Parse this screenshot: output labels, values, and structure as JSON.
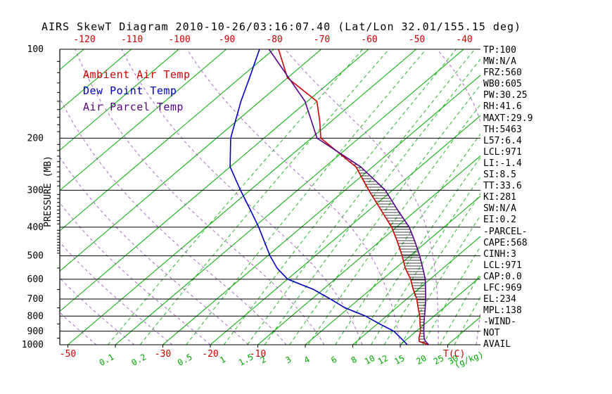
{
  "title": "AIRS SkewT Diagram 2010-10-26/03:16:07.40 (Lat/Lon 32.01/155.15 deg)",
  "colors": {
    "temp": "#cc0000",
    "dewpoint": "#0000bb",
    "parcel": "#550088",
    "isotherm": "#00aa00",
    "mixing": "#00aa00",
    "moist_adiabat": "#9944bb",
    "axis": "#000000",
    "background": "#ffffff"
  },
  "legend": {
    "items": [
      {
        "label": "Ambient Air Temp",
        "color": "#cc0000"
      },
      {
        "label": "Dew Point Temp",
        "color": "#0000bb"
      },
      {
        "label": "Air Parcel Temp",
        "color": "#550088"
      }
    ]
  },
  "left_axis": {
    "title": "PRESSURE (MB)",
    "ticks": [
      100,
      200,
      300,
      400,
      500,
      600,
      700,
      800,
      900,
      1000
    ]
  },
  "top_axis": {
    "labels": [
      -120,
      -110,
      -100,
      -90,
      -80,
      -70,
      -60,
      -50,
      -40
    ]
  },
  "bottom_axis": {
    "temp_labels": [
      -50,
      -30,
      -20,
      -10
    ],
    "temp_unit": "T(C)",
    "mixing_labels": [
      0.1,
      0.2,
      0.5,
      1,
      1.5,
      2,
      3,
      4,
      6,
      8,
      10,
      12,
      15,
      20,
      25,
      30
    ],
    "mixing_unit": "(g/kg)"
  },
  "metrics_panel": {
    "lines": [
      "TP:100",
      "MW:N/A",
      "FRZ:560",
      "WB0:605",
      "PW:30.25",
      "RH:41.6",
      "MAXT:29.9",
      "TH:5463",
      "L57:6.4",
      "LCL:971",
      "LI:-1.4",
      "SI:8.5",
      "TT:33.6",
      "KI:281",
      "SW:N/A",
      "EI:0.2",
      "-PARCEL-",
      "CAPE:568",
      "CINH:3",
      "LCL:971",
      "CAP:0.0",
      "LFC:969",
      "EL:234",
      "MPL:138",
      "-WIND-",
      "NOT",
      "AVAIL"
    ]
  },
  "chart_data": {
    "type": "line",
    "title": "AIRS SkewT Diagram 2010-10-26/03:16:07.40 (Lat/Lon 32.01/155.15 deg)",
    "x_axis": {
      "unit": "T(C)",
      "top_labels_at_100mb": [
        -120,
        -110,
        -100,
        -90,
        -80,
        -70,
        -60,
        -50,
        -40
      ],
      "bottom_labels_at_1000mb": [
        -50,
        -30,
        -20,
        -10
      ],
      "skewed": true
    },
    "y_axis": {
      "unit": "MB",
      "label": "PRESSURE (MB)",
      "scale": "log",
      "range": [
        100,
        1000
      ],
      "ticks": [
        100,
        200,
        300,
        400,
        500,
        600,
        700,
        800,
        900,
        1000
      ]
    },
    "isotherms_c": {
      "min": -130,
      "max": 40,
      "step": 10
    },
    "mixing_ratio_lines_g_per_kg": [
      0.1,
      0.2,
      0.5,
      1,
      1.5,
      2,
      3,
      4,
      6,
      8,
      10,
      12,
      15,
      20,
      25,
      30
    ],
    "moist_adiabat_surface_temps_c": [
      -44,
      -36,
      -28,
      -20,
      -12,
      -4,
      4,
      12,
      20,
      28,
      36,
      44
    ],
    "grid": true,
    "legend_position": "upper-left",
    "series": [
      {
        "name": "Ambient Air Temp",
        "color": "#cc0000",
        "points": [
          [
            100,
            -79
          ],
          [
            125,
            -70
          ],
          [
            150,
            -58
          ],
          [
            175,
            -52.5
          ],
          [
            200,
            -48
          ],
          [
            250,
            -33.5
          ],
          [
            300,
            -25
          ],
          [
            350,
            -17.5
          ],
          [
            400,
            -11
          ],
          [
            450,
            -6
          ],
          [
            500,
            -1.7
          ],
          [
            550,
            2
          ],
          [
            600,
            5.9
          ],
          [
            650,
            9
          ],
          [
            700,
            12.1
          ],
          [
            750,
            14.6
          ],
          [
            800,
            17
          ],
          [
            850,
            19
          ],
          [
            900,
            20.9
          ],
          [
            950,
            22.3
          ],
          [
            975,
            23.2
          ],
          [
            1000,
            26
          ]
        ]
      },
      {
        "name": "Dew Point Temp",
        "color": "#0000bb",
        "points": [
          [
            100,
            -83
          ],
          [
            125,
            -78
          ],
          [
            150,
            -74
          ],
          [
            200,
            -67
          ],
          [
            250,
            -60
          ],
          [
            300,
            -52
          ],
          [
            350,
            -45
          ],
          [
            400,
            -39
          ],
          [
            450,
            -34
          ],
          [
            500,
            -29.5
          ],
          [
            550,
            -25
          ],
          [
            600,
            -20
          ],
          [
            650,
            -12
          ],
          [
            700,
            -6.1
          ],
          [
            750,
            -0.8
          ],
          [
            800,
            5.6
          ],
          [
            850,
            10.5
          ],
          [
            900,
            15.3
          ],
          [
            950,
            18.5
          ],
          [
            1000,
            21.5
          ]
        ]
      },
      {
        "name": "Air Parcel Temp",
        "color": "#550088",
        "points": [
          [
            100,
            -81
          ],
          [
            150,
            -60.5
          ],
          [
            200,
            -48.8
          ],
          [
            250,
            -32.5
          ],
          [
            300,
            -21.5
          ],
          [
            350,
            -14
          ],
          [
            400,
            -7.3
          ],
          [
            450,
            -2.3
          ],
          [
            500,
            2
          ],
          [
            550,
            5.7
          ],
          [
            600,
            9
          ],
          [
            650,
            11.6
          ],
          [
            700,
            14
          ],
          [
            750,
            16.1
          ],
          [
            800,
            18
          ],
          [
            850,
            19.8
          ],
          [
            900,
            21.6
          ],
          [
            950,
            23.4
          ],
          [
            971,
            24.3
          ],
          [
            1000,
            26
          ]
        ]
      }
    ],
    "annotations": {
      "cape_hatched_between": [
        "Ambient Air Temp",
        "Air Parcel Temp"
      ],
      "lfc_mb": 969,
      "el_mb": 234,
      "cape_j_kg": 568
    }
  }
}
